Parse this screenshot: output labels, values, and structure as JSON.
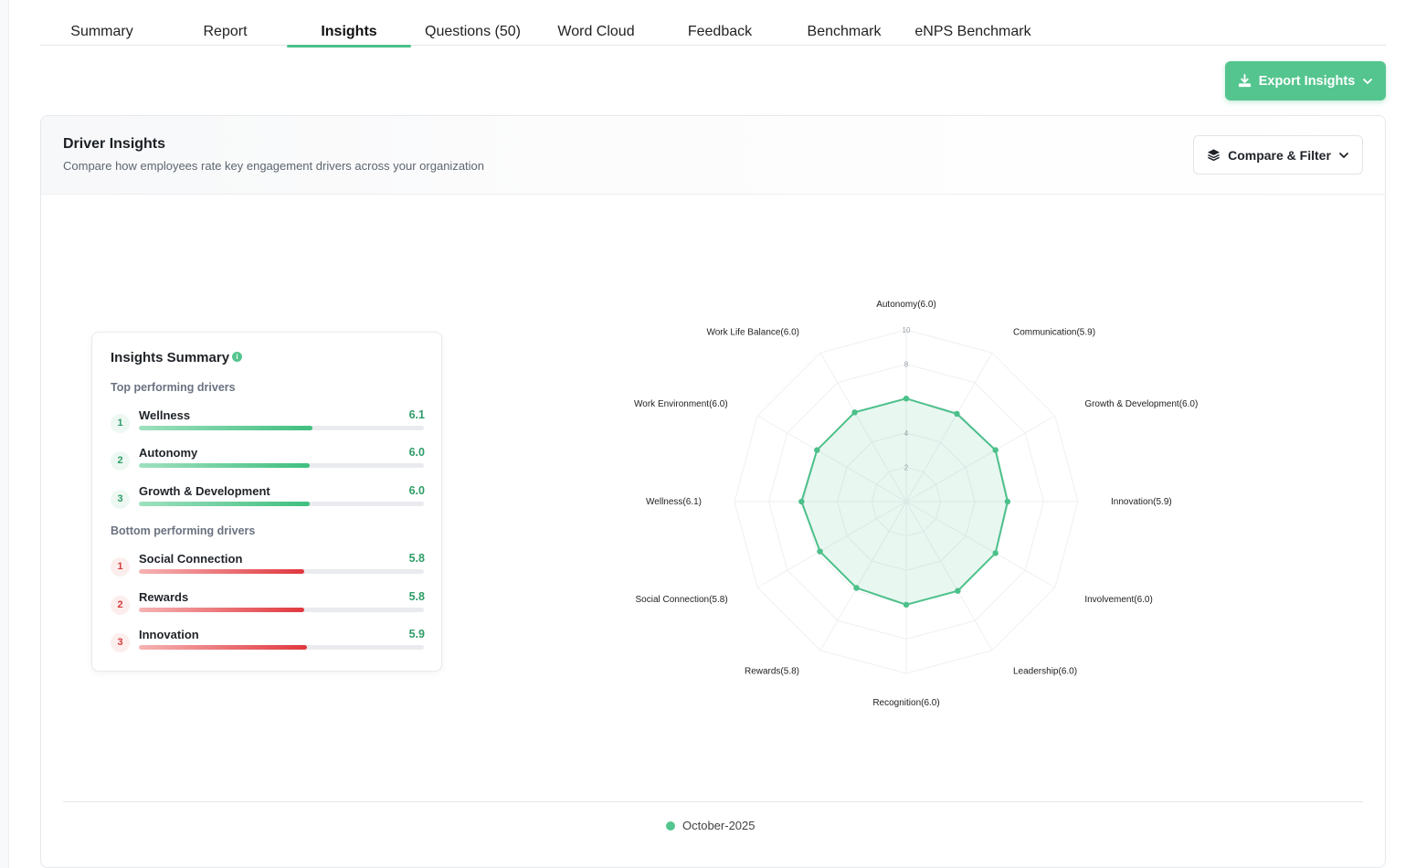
{
  "tabs": [
    "Summary",
    "Report",
    "Insights",
    "Questions (50)",
    "Word Cloud",
    "Feedback",
    "Benchmark",
    "eNPS Benchmark"
  ],
  "active_tab": "Insights",
  "export_button": {
    "label": "Export Insights",
    "icon": "download-icon"
  },
  "card": {
    "title": "Driver Insights",
    "subtitle": "Compare how employees rate key engagement drivers across your organization",
    "compare_button": "Compare & Filter"
  },
  "summary": {
    "title": "Insights Summary",
    "top_label": "Top performing drivers",
    "bottom_label": "Bottom performing drivers",
    "top": [
      {
        "rank": "1",
        "name": "Wellness",
        "score": "6.1",
        "value": 6.1
      },
      {
        "rank": "2",
        "name": "Autonomy",
        "score": "6.0",
        "value": 6.0
      },
      {
        "rank": "3",
        "name": "Growth & Development",
        "score": "6.0",
        "value": 6.0
      }
    ],
    "bottom": [
      {
        "rank": "1",
        "name": "Social Connection",
        "score": "5.8",
        "value": 5.8
      },
      {
        "rank": "2",
        "name": "Rewards",
        "score": "5.8",
        "value": 5.8
      },
      {
        "rank": "3",
        "name": "Innovation",
        "score": "5.9",
        "value": 5.9
      }
    ],
    "max": 10
  },
  "chart_data": {
    "type": "radar",
    "categories": [
      "Autonomy",
      "Communication",
      "Growth & Development",
      "Innovation",
      "Involvement",
      "Leadership",
      "Recognition",
      "Rewards",
      "Social Connection",
      "Wellness",
      "Work Environment",
      "Work Life Balance"
    ],
    "labels": [
      "Autonomy(6.0)",
      "Communication(5.9)",
      "Growth & Development(6.0)",
      "Innovation(5.9)",
      "Involvement(6.0)",
      "Leadership(6.0)",
      "Recognition(6.0)",
      "Rewards(5.8)",
      "Social Connection(5.8)",
      "Wellness(6.1)",
      "Work Environment(6.0)",
      "Work Life Balance(6.0)"
    ],
    "series": [
      {
        "name": "October-2025",
        "values": [
          6.0,
          5.9,
          6.0,
          5.9,
          6.0,
          6.0,
          6.0,
          5.8,
          5.8,
          6.1,
          6.0,
          6.0
        ],
        "color": "#4cc08a"
      }
    ],
    "rlim": [
      0,
      10
    ],
    "ticks": [
      2,
      4,
      8,
      10
    ],
    "legend": "bottom-center"
  }
}
